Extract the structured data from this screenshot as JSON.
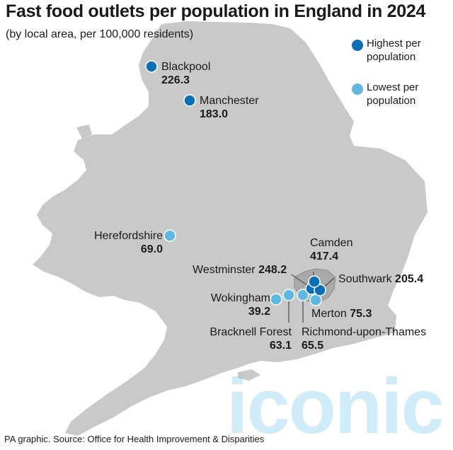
{
  "title": "Fast food outlets per population in England in 2024",
  "subtitle": "(by local area, per 100,000 residents)",
  "source": "PA graphic. Source: Office for Health Improvement & Disparities",
  "watermark": "iconic",
  "colors": {
    "highest": "#0a6fb5",
    "lowest": "#5fb8e2",
    "land": "#c9c9c9",
    "london": "#a9a9a9",
    "connector": "#555555"
  },
  "legend": {
    "highest": "Highest per\npopulation",
    "lowest": "Lowest per\npopulation"
  },
  "places": {
    "blackpool": {
      "name": "Blackpool",
      "value": "226.3",
      "group": "highest"
    },
    "manchester": {
      "name": "Manchester",
      "value": "183.0",
      "group": "highest"
    },
    "herefordshire": {
      "name": "Herefordshire",
      "value": "69.0",
      "group": "lowest"
    },
    "camden": {
      "name": "Camden",
      "value": "417.4",
      "group": "highest"
    },
    "westminster": {
      "name": "Westminster",
      "value": "248.2",
      "group": "highest"
    },
    "southwark": {
      "name": "Southwark",
      "value": "205.4",
      "group": "highest"
    },
    "wokingham": {
      "name": "Wokingham",
      "value": "39.2",
      "group": "lowest"
    },
    "merton": {
      "name": "Merton",
      "value": "75.3",
      "group": "lowest"
    },
    "bracknell": {
      "name": "Bracknell Forest",
      "value": "63.1",
      "group": "lowest"
    },
    "richmond": {
      "name": "Richmond-upon-Thames",
      "value": "65.5",
      "group": "lowest"
    }
  }
}
